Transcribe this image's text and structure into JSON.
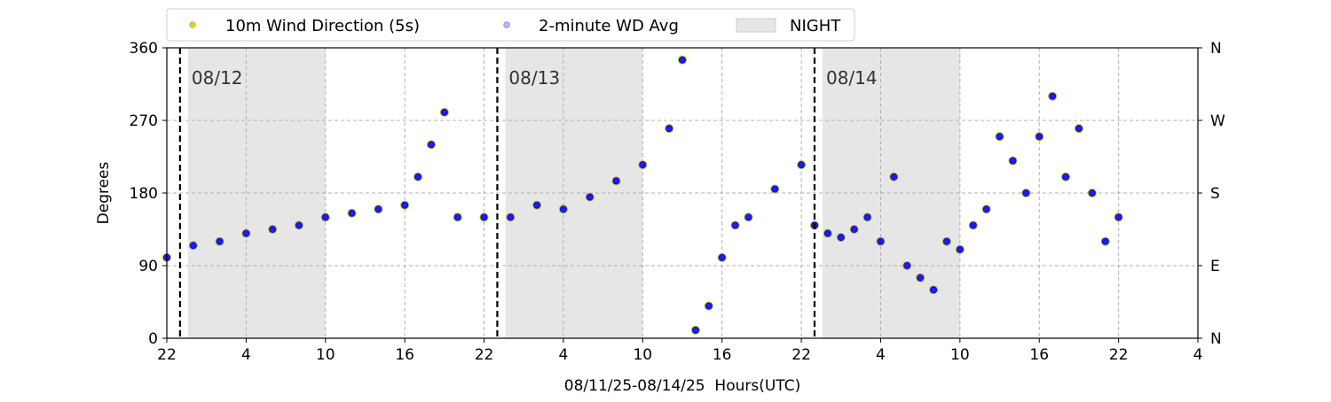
{
  "chart_data": {
    "type": "scatter",
    "xlabel": "08/11/25-08/14/25  Hours(UTC)",
    "ylabel": "Degrees",
    "x_range_hours": [
      22,
      100
    ],
    "ylim": [
      0,
      360
    ],
    "x_ticks": [
      {
        "hour": 22,
        "label": "22"
      },
      {
        "hour": 28,
        "label": "4"
      },
      {
        "hour": 34,
        "label": "10"
      },
      {
        "hour": 40,
        "label": "16"
      },
      {
        "hour": 46,
        "label": "22"
      },
      {
        "hour": 52,
        "label": "4"
      },
      {
        "hour": 58,
        "label": "10"
      },
      {
        "hour": 64,
        "label": "16"
      },
      {
        "hour": 70,
        "label": "22"
      },
      {
        "hour": 76,
        "label": "4"
      },
      {
        "hour": 82,
        "label": "10"
      },
      {
        "hour": 88,
        "label": "16"
      },
      {
        "hour": 94,
        "label": "22"
      },
      {
        "hour": 100,
        "label": "4"
      }
    ],
    "y_ticks": [
      0,
      90,
      180,
      270,
      360
    ],
    "y2_ticks": [
      {
        "value": 0,
        "label": "N"
      },
      {
        "value": 90,
        "label": "E"
      },
      {
        "value": 180,
        "label": "S"
      },
      {
        "value": 270,
        "label": "W"
      },
      {
        "value": 360,
        "label": "N"
      }
    ],
    "grid": true,
    "legend_position": "top-center",
    "legend": [
      {
        "label": "10m Wind Direction (5s)",
        "color": "#bfbf00",
        "kind": "marker"
      },
      {
        "label": "2-minute WD Avg",
        "color": "#0000ff",
        "kind": "marker"
      },
      {
        "label": "NIGHT",
        "color": "#e6e6e6",
        "kind": "patch"
      }
    ],
    "night_periods": [
      [
        23.6,
        34
      ],
      [
        47.6,
        58
      ],
      [
        71.6,
        82
      ]
    ],
    "day_markers": [
      {
        "hour": 23,
        "label": "08/12"
      },
      {
        "hour": 47,
        "label": "08/13"
      },
      {
        "hour": 71,
        "label": "08/14"
      }
    ],
    "series": [
      {
        "name": "10m Wind Direction (5s)",
        "color": "#bfbf00",
        "x": [
          22,
          24,
          26,
          28,
          30,
          32,
          34,
          36,
          38,
          40,
          41,
          42,
          43,
          44,
          46,
          48,
          50,
          52,
          54,
          56,
          58,
          60,
          61,
          62,
          63,
          64,
          65,
          66,
          68,
          70,
          71,
          72,
          73,
          74,
          75,
          76,
          77,
          78,
          79,
          80,
          81,
          82,
          83,
          84,
          85,
          86,
          87,
          88,
          89,
          90,
          91,
          92,
          93,
          94
        ],
        "y": [
          100,
          115,
          120,
          130,
          135,
          140,
          150,
          155,
          160,
          165,
          200,
          240,
          280,
          150,
          150,
          150,
          165,
          160,
          175,
          195,
          215,
          260,
          345,
          10,
          40,
          100,
          140,
          150,
          185,
          215,
          140,
          130,
          125,
          135,
          150,
          120,
          200,
          90,
          75,
          60,
          120,
          110,
          140,
          160,
          250,
          220,
          180,
          250,
          300,
          200,
          260,
          180,
          120,
          150
        ]
      },
      {
        "name": "2-minute WD Avg",
        "color": "#0000ff",
        "x": [
          22,
          24,
          26,
          28,
          30,
          32,
          34,
          36,
          38,
          40,
          41,
          42,
          43,
          44,
          46,
          48,
          50,
          52,
          54,
          56,
          58,
          60,
          61,
          62,
          63,
          64,
          65,
          66,
          68,
          70,
          71,
          72,
          73,
          74,
          75,
          76,
          77,
          78,
          79,
          80,
          81,
          82,
          83,
          84,
          85,
          86,
          87,
          88,
          89,
          90,
          91,
          92,
          93,
          94
        ],
        "y": [
          100,
          115,
          120,
          130,
          135,
          140,
          150,
          155,
          160,
          165,
          200,
          240,
          280,
          150,
          150,
          150,
          165,
          160,
          175,
          195,
          215,
          260,
          345,
          10,
          40,
          100,
          140,
          150,
          185,
          215,
          140,
          130,
          125,
          135,
          150,
          120,
          200,
          90,
          75,
          60,
          120,
          110,
          140,
          160,
          250,
          220,
          180,
          250,
          300,
          200,
          260,
          180,
          120,
          150
        ]
      }
    ]
  }
}
